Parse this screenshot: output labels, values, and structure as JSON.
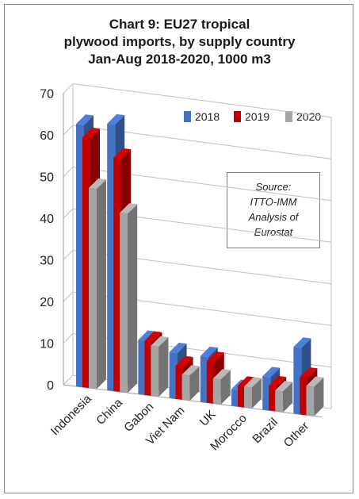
{
  "chart_data": {
    "type": "bar",
    "title_lines": [
      "Chart 9: EU27 tropical",
      "plywood imports, by supply country",
      "Jan-Aug 2018-2020, 1000 m3"
    ],
    "categories": [
      "Indonesia",
      "China",
      "Gabon",
      "Viet Nam",
      "UK",
      "Morocco",
      "Brazil",
      "Other"
    ],
    "series": [
      {
        "name": "2018",
        "color": "#4472c4",
        "values": [
          63,
          64,
          13,
          11,
          11,
          4,
          8,
          16
        ]
      },
      {
        "name": "2019",
        "color": "#c00000",
        "values": [
          60,
          56,
          13,
          8,
          10,
          5,
          6,
          9
        ]
      },
      {
        "name": "2020",
        "color": "#a5a5a5",
        "values": [
          48,
          43,
          12,
          6,
          6,
          5,
          5,
          7
        ]
      }
    ],
    "y_ticks": [
      0,
      10,
      20,
      30,
      40,
      50,
      60,
      70
    ],
    "ylim": [
      0,
      70
    ],
    "grid": true,
    "legend_position": "top-right",
    "annotation_lines": [
      "Source:",
      "ITTO-IMM",
      "Analysis of",
      "Eurostat"
    ]
  }
}
